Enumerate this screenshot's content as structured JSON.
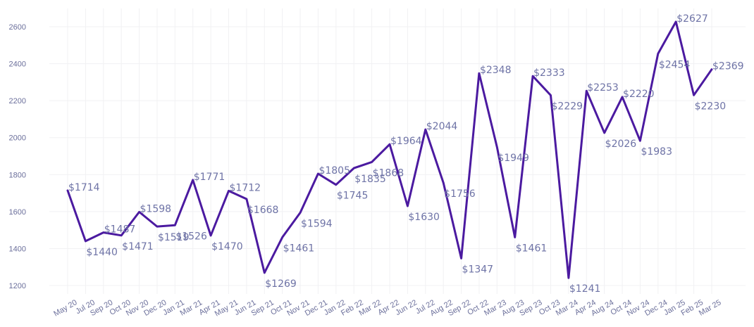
{
  "chart_data": {
    "type": "line",
    "title": "",
    "xlabel": "",
    "ylabel": "",
    "ylim": [
      1200,
      2650
    ],
    "yticks": [
      1200,
      1400,
      1600,
      1800,
      2000,
      2200,
      2400,
      2600
    ],
    "grid": true,
    "legend": "none",
    "colors": {
      "line": "#4b1aa0",
      "labels": "#6e73a6",
      "ticks": "#6b6f9b",
      "grid": "#f1f1f3"
    },
    "categories": [
      "May 20",
      "Jul 20",
      "Sep 20",
      "Oct 20",
      "Nov 20",
      "Dec 20",
      "Jan 21",
      "Mar 21",
      "Apr 21",
      "May 21",
      "Jun 21",
      "Sep 21",
      "Oct 21",
      "Nov 21",
      "Dec 21",
      "Jan 22",
      "Feb 22",
      "Mar 22",
      "Apr 22",
      "Jun 22",
      "Jul 22",
      "Aug 22",
      "Sep 22",
      "Oct 22",
      "Mar 23",
      "Aug 23",
      "Sep 23",
      "Oct 23",
      "Mar 24",
      "Apr 24",
      "Aug 24",
      "Oct 24",
      "Nov 24",
      "Dec 24",
      "Jan 25",
      "Feb 25",
      "Mar 25"
    ],
    "values": [
      1714,
      1440,
      1487,
      1471,
      1598,
      1519,
      1526,
      1771,
      1470,
      1712,
      1668,
      1269,
      1461,
      1594,
      1805,
      1745,
      1835,
      1868,
      1964,
      1630,
      2044,
      1756,
      1347,
      2348,
      1949,
      1461,
      2333,
      2229,
      1241,
      2253,
      2026,
      2220,
      1983,
      2454,
      2627,
      2230,
      2369
    ],
    "labels": [
      "$1714",
      "$1440",
      "$1487",
      "$1471",
      "$1598",
      "$1519",
      "$1526",
      "$1771",
      "$1470",
      "$1712",
      "$1668",
      "$1269",
      "$1461",
      "$1594",
      "$1805",
      "$1745",
      "$1835",
      "$1868",
      "$1964",
      "$1630",
      "$2044",
      "$1756",
      "$1347",
      "$2348",
      "$1949",
      "$1461",
      "$2333",
      "$2229",
      "$1241",
      "$2253",
      "$2026",
      "$2220",
      "$1983",
      "$2454",
      "$2627",
      "$2230",
      "$2369"
    ]
  }
}
